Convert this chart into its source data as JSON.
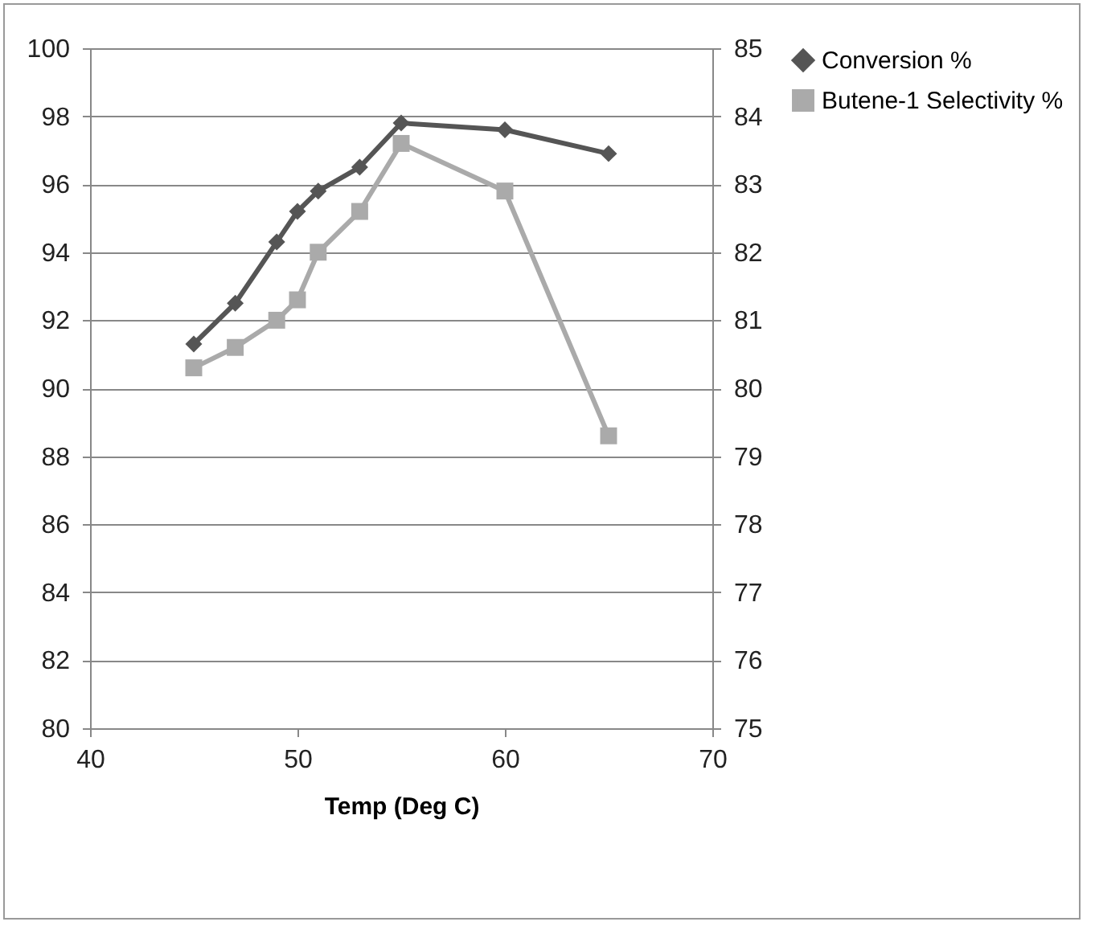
{
  "chart_data": {
    "type": "line",
    "xlabel": "Temp (Deg C)",
    "x": [
      45,
      47,
      49,
      50,
      51,
      53,
      55,
      60,
      65
    ],
    "series": [
      {
        "name": "Conversion %",
        "color": "#555555",
        "marker": "diamond",
        "values": [
          91.3,
          92.5,
          94.3,
          95.2,
          95.8,
          96.5,
          97.8,
          97.6,
          96.9
        ]
      },
      {
        "name": "Butene-1 Selectivity %",
        "color": "#aaaaaa",
        "marker": "square",
        "axis": "y2",
        "values": [
          80.3,
          80.6,
          81.0,
          81.3,
          82.0,
          82.6,
          83.6,
          82.9,
          79.3
        ]
      }
    ],
    "xlim": [
      40,
      70
    ],
    "xticks": [
      40,
      50,
      60,
      70
    ],
    "ylim": [
      80,
      100
    ],
    "yticks": [
      80,
      82,
      84,
      86,
      88,
      90,
      92,
      94,
      96,
      98,
      100
    ],
    "y2lim": [
      75,
      85
    ],
    "y2ticks": [
      75,
      76,
      77,
      78,
      79,
      80,
      81,
      82,
      83,
      84,
      85
    ],
    "grid": "y",
    "legend": "right"
  }
}
